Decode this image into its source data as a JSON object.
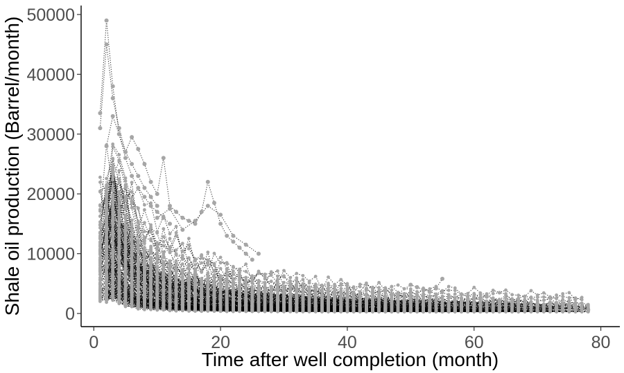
{
  "chart_data": {
    "type": "scatter",
    "title": "",
    "xlabel": "Time after well completion (month)",
    "ylabel": "Shale oil production (Barrel/month)",
    "xlim": [
      -2,
      83
    ],
    "ylim": [
      -2200,
      51500
    ],
    "x_ticks": [
      0,
      20,
      40,
      60,
      80
    ],
    "x_tick_labels": [
      "0",
      "20",
      "40",
      "60",
      "80"
    ],
    "y_ticks": [
      0,
      10000,
      20000,
      30000,
      40000,
      50000
    ],
    "y_tick_labels": [
      "0",
      "10000",
      "20000",
      "30000",
      "40000",
      "50000"
    ],
    "grid": false,
    "legend": "none",
    "point_color": "#a6a6a6",
    "line_color": "#000000",
    "line_style": "dotted",
    "highlighted_series": [
      {
        "x": [
          1,
          2,
          3,
          4,
          5,
          6,
          7,
          8,
          9,
          10,
          11,
          12
        ],
        "y": [
          33500,
          49000,
          38000,
          30000,
          26000,
          23000,
          21000,
          19500,
          18000,
          17000,
          16000,
          15000
        ]
      },
      {
        "x": [
          1,
          2,
          3,
          4,
          5,
          6,
          7,
          8,
          9,
          10
        ],
        "y": [
          31000,
          45000,
          36000,
          31000,
          27000,
          25000,
          23000,
          21000,
          19500,
          18000
        ]
      },
      {
        "x": [
          2,
          3,
          4,
          5,
          6,
          7,
          8,
          9,
          10,
          11,
          12,
          13,
          14,
          15,
          16,
          17,
          18,
          19,
          20,
          21,
          22,
          23,
          24,
          25
        ],
        "y": [
          28000,
          33000,
          30000,
          27000,
          29500,
          27500,
          25000,
          22000,
          20000,
          26000,
          18000,
          17000,
          16000,
          15500,
          15000,
          17000,
          22000,
          18500,
          15000,
          13000,
          12000,
          11000,
          10000,
          9000
        ]
      },
      {
        "x": [
          10,
          12,
          14,
          16,
          18,
          20,
          22,
          24,
          26
        ],
        "y": [
          16000,
          17500,
          14000,
          15500,
          18000,
          16500,
          13000,
          11500,
          10000
        ]
      },
      {
        "x": [
          44,
          46,
          48,
          50,
          51,
          52,
          53,
          54,
          55
        ],
        "y": [
          3500,
          3800,
          3300,
          4800,
          4400,
          4000,
          3600,
          4200,
          5800
        ]
      },
      {
        "x": [
          60,
          62,
          64,
          66,
          68,
          70,
          72,
          74,
          76,
          78
        ],
        "y": [
          2600,
          2800,
          2100,
          1900,
          1700,
          1600,
          1400,
          1700,
          1300,
          600
        ]
      }
    ],
    "bulk_series_description": "hundreds of well decline curves, each starting near month 1 at 5000-30000 and decaying toward 300-2000 by months 40-78"
  }
}
